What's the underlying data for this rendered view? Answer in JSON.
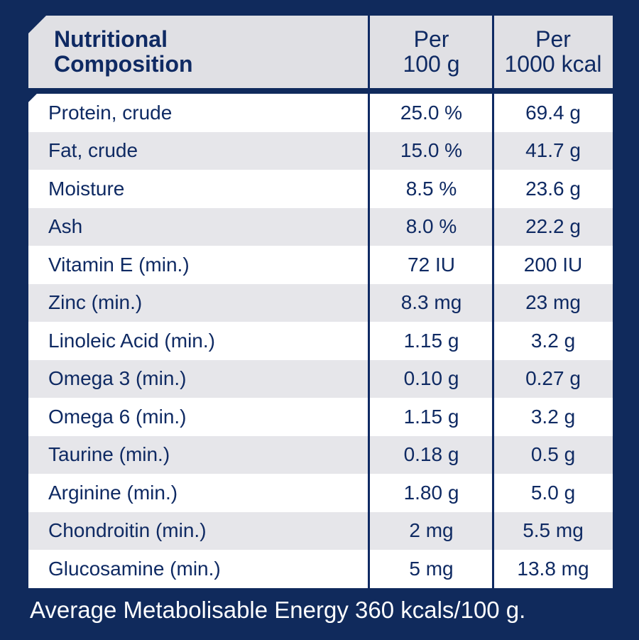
{
  "header": {
    "title_line1": "Nutritional",
    "title_line2": "Composition",
    "col1_line1": "Per",
    "col1_line2": "100 g",
    "col2_line1": "Per",
    "col2_line2": "1000 kcal"
  },
  "rows": [
    {
      "name": "Protein, crude",
      "per100g": "25.0 %",
      "per1000kcal": "69.4 g"
    },
    {
      "name": "Fat, crude",
      "per100g": "15.0 %",
      "per1000kcal": "41.7 g"
    },
    {
      "name": "Moisture",
      "per100g": "8.5 %",
      "per1000kcal": "23.6 g"
    },
    {
      "name": "Ash",
      "per100g": "8.0 %",
      "per1000kcal": "22.2 g"
    },
    {
      "name": "Vitamin E (min.)",
      "per100g": "72 IU",
      "per1000kcal": "200 IU"
    },
    {
      "name": "Zinc (min.)",
      "per100g": "8.3 mg",
      "per1000kcal": "23 mg"
    },
    {
      "name": "Linoleic Acid (min.)",
      "per100g": "1.15 g",
      "per1000kcal": "3.2 g"
    },
    {
      "name": "Omega 3 (min.)",
      "per100g": "0.10 g",
      "per1000kcal": "0.27 g"
    },
    {
      "name": "Omega 6 (min.)",
      "per100g": "1.15 g",
      "per1000kcal": "3.2 g"
    },
    {
      "name": "Taurine (min.)",
      "per100g": "0.18 g",
      "per1000kcal": "0.5 g"
    },
    {
      "name": "Arginine (min.)",
      "per100g": "1.80 g",
      "per1000kcal": "5.0 g"
    },
    {
      "name": "Chondroitin (min.)",
      "per100g": "2 mg",
      "per1000kcal": "5.5 mg"
    },
    {
      "name": "Glucosamine (min.)",
      "per100g": "5 mg",
      "per1000kcal": "13.8 mg"
    }
  ],
  "footer": "Average Metabolisable Energy 360 kcals/100 g.",
  "colors": {
    "background": "#102a5c",
    "header_bg": "#e0e0e4",
    "row_alt": "#e6e6ea",
    "row_plain": "#ffffff",
    "text": "#0f2a63"
  }
}
